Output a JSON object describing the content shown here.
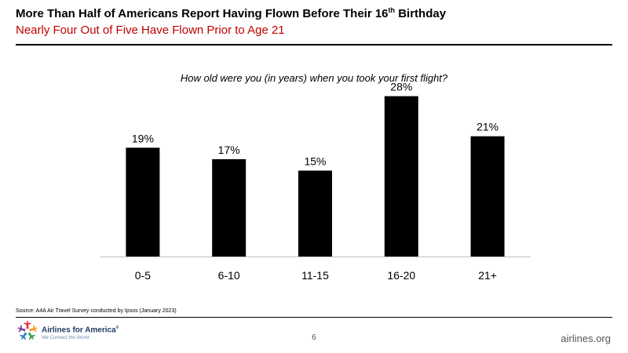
{
  "header": {
    "title_main": "More Than Half of Americans Report Having Flown Before Their 16",
    "title_sup": "th",
    "title_end": " Birthday",
    "subtitle": "Nearly Four Out of Five Have Flown Prior to Age 21"
  },
  "chart_data": {
    "type": "bar",
    "title": "How old were you (in years) when you took your first flight?",
    "xlabel": "",
    "ylabel": "",
    "categories": [
      "0-5",
      "6-10",
      "11-15",
      "16-20",
      "21+"
    ],
    "values": [
      19,
      17,
      15,
      28,
      21
    ],
    "value_labels": [
      "19%",
      "17%",
      "15%",
      "28%",
      "21%"
    ],
    "unit": "%",
    "ylim": [
      0,
      30
    ],
    "grid": false,
    "legend": "none",
    "bar_color": "#000000"
  },
  "footer": {
    "source": "Source: A4A Air Travel Survey conducted by Ipsos (January 2023)",
    "page_number": "6",
    "website": "airlines.org"
  },
  "logo": {
    "name": "Airlines for America",
    "registered": "®",
    "tagline": "We Connect the World",
    "colors": [
      "#e5323b",
      "#f39a1e",
      "#2e9e4f",
      "#2a7fc1",
      "#7b3f98"
    ]
  }
}
